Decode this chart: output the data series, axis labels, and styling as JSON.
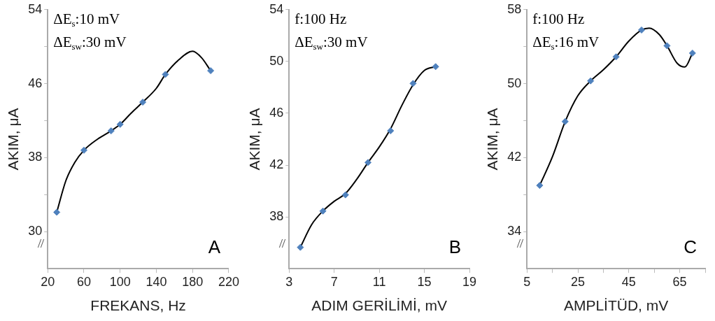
{
  "chart_data": [
    {
      "type": "scatter",
      "xlabel": "FREKANS, Hz",
      "ylabel": "AKIM, μA",
      "annotations": [
        "ΔE$_{s}$:10 mV",
        "ΔE$_{sw}$:30 mV",
        "A"
      ],
      "xlim": [
        20,
        220
      ],
      "xticks": [
        20,
        60,
        100,
        140,
        180,
        220
      ],
      "ylim": [
        26,
        54
      ],
      "yticks": [
        30,
        {
          "value": 34,
          "label": null
        },
        38,
        {
          "value": 42,
          "label": null
        },
        46,
        {
          "value": 50,
          "label": null
        },
        54
      ],
      "series": [
        {
          "type": "scatter",
          "marker": "diamond",
          "color": "#4f81bd",
          "x": [
            30,
            60,
            90,
            100,
            125,
            150,
            200
          ],
          "values": [
            32.1,
            38.8,
            40.9,
            41.6,
            44.0,
            47.0,
            47.4
          ]
        },
        {
          "type": "line",
          "marker": "none",
          "color": "#000000",
          "x": [
            30,
            40,
            50,
            60,
            75,
            90,
            100,
            112,
            125,
            140,
            150,
            165,
            180,
            190,
            200
          ],
          "values": [
            32.1,
            35.5,
            37.5,
            38.8,
            40.0,
            40.9,
            41.6,
            42.8,
            44.0,
            45.5,
            47.0,
            48.6,
            49.5,
            48.8,
            47.4
          ]
        }
      ]
    },
    {
      "type": "scatter",
      "xlabel": "ADIM GERİLİMİ, mV",
      "ylabel": "AKIM, μA",
      "annotations": [
        "f:100 Hz",
        "ΔE$_{sw}$:30 mV",
        "B"
      ],
      "xlim": [
        3,
        19
      ],
      "xticks": [
        3,
        7,
        11,
        15,
        19
      ],
      "ylim": [
        34,
        54
      ],
      "yticks": [
        38,
        42,
        46,
        50,
        54
      ],
      "series": [
        {
          "type": "scatter",
          "marker": "diamond",
          "color": "#4f81bd",
          "x": [
            4,
            6,
            8,
            10,
            12,
            14,
            16
          ],
          "values": [
            35.65,
            38.45,
            39.7,
            42.2,
            44.65,
            48.3,
            49.6
          ]
        },
        {
          "type": "line",
          "marker": "none",
          "color": "#000000",
          "x": [
            4,
            5,
            6,
            7,
            8,
            9,
            10,
            11,
            12,
            13,
            14,
            15,
            16
          ],
          "values": [
            35.65,
            37.4,
            38.45,
            39.2,
            39.8,
            40.9,
            42.2,
            43.4,
            44.8,
            46.6,
            48.2,
            49.3,
            49.6
          ]
        }
      ]
    },
    {
      "type": "scatter",
      "xlabel": "AMPLİTÜD, mV",
      "ylabel": "AKIM, μA",
      "annotations": [
        "f:100 Hz",
        "ΔE$_{s}$:16 mV",
        "C"
      ],
      "xlim": [
        5,
        75
      ],
      "xticks": [
        5,
        {
          "value": 15,
          "label": null
        },
        25,
        {
          "value": 35,
          "label": null
        },
        45,
        {
          "value": 55,
          "label": null
        },
        65,
        {
          "value": 75,
          "label": null
        }
      ],
      "ylim": [
        30,
        58
      ],
      "yticks": [
        34,
        {
          "value": 38,
          "label": null
        },
        42,
        {
          "value": 46,
          "label": null
        },
        50,
        {
          "value": 54,
          "label": null
        },
        58
      ],
      "series": [
        {
          "type": "scatter",
          "marker": "diamond",
          "color": "#4f81bd",
          "x": [
            10,
            20,
            30,
            40,
            50,
            60,
            70
          ],
          "values": [
            39.0,
            45.9,
            50.3,
            52.9,
            55.8,
            54.1,
            53.3
          ]
        },
        {
          "type": "line",
          "marker": "none",
          "color": "#000000",
          "x": [
            10,
            15,
            20,
            25,
            30,
            35,
            40,
            45,
            50,
            53,
            57,
            60,
            64,
            67,
            70
          ],
          "values": [
            39.0,
            42.1,
            45.9,
            48.7,
            50.3,
            51.5,
            52.9,
            54.6,
            55.8,
            56.0,
            55.3,
            54.1,
            52.2,
            51.8,
            53.3
          ]
        }
      ]
    }
  ]
}
